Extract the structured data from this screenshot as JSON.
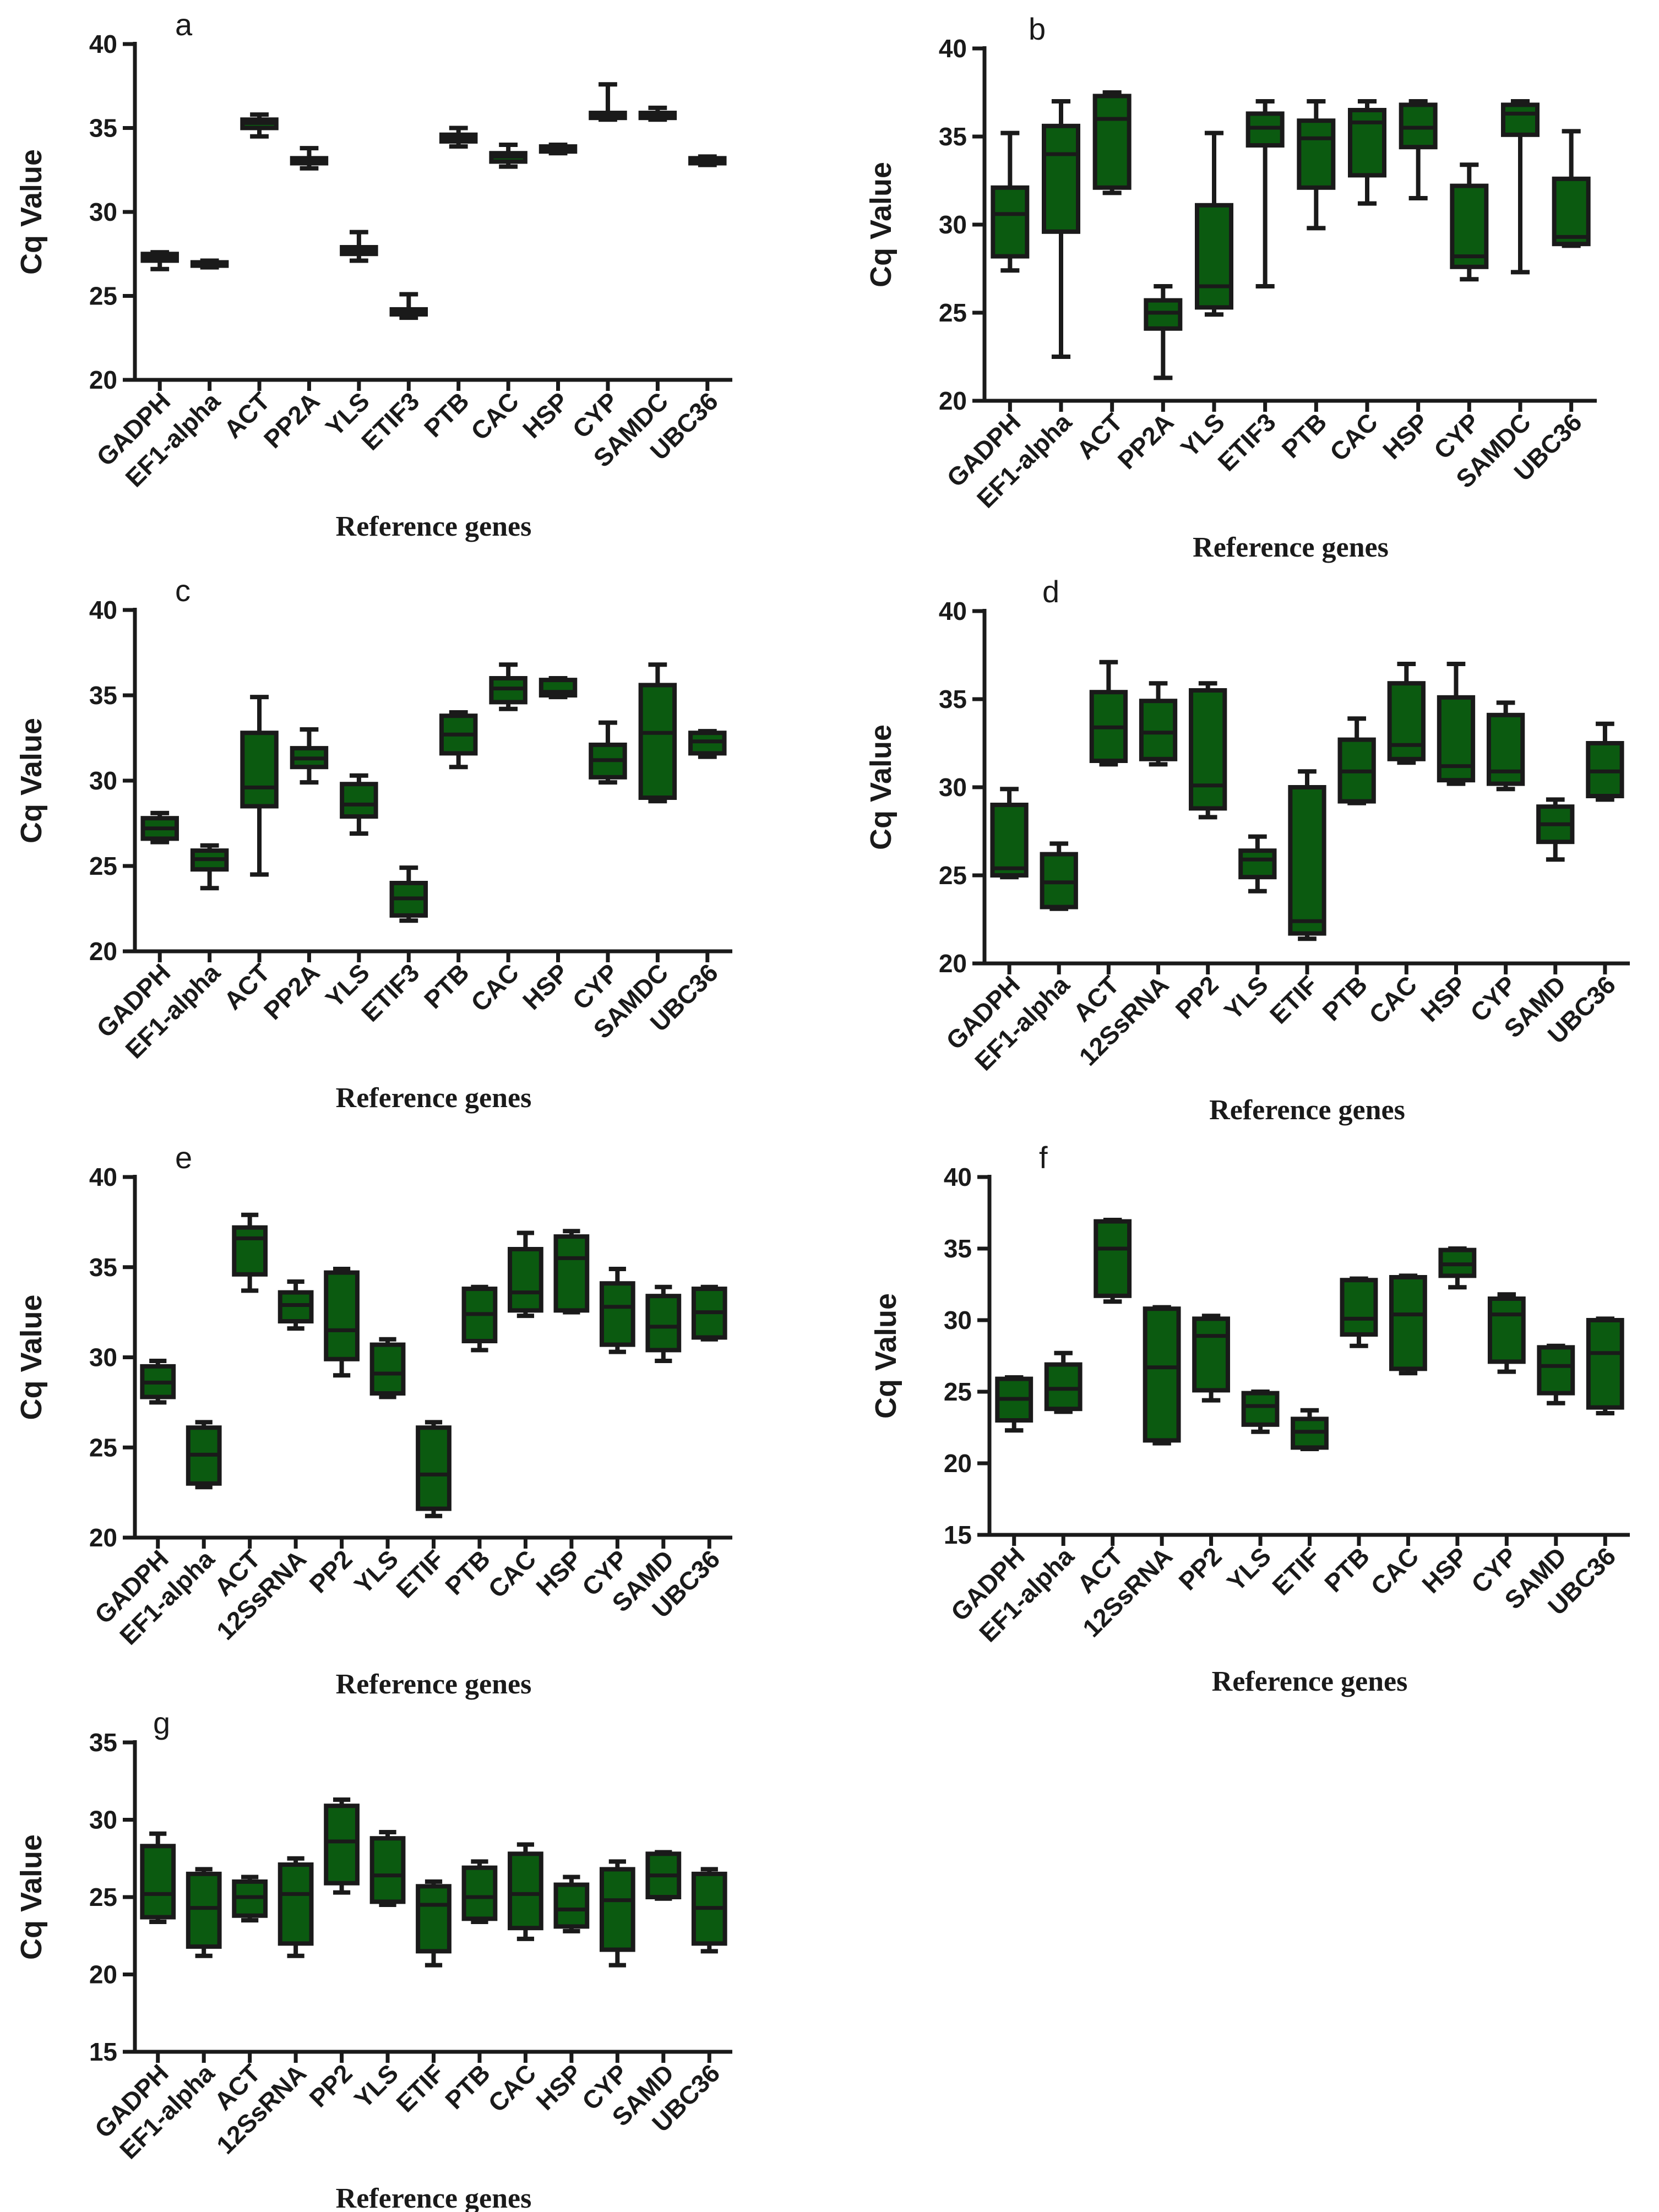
{
  "chart_data": [
    {
      "panel": "a",
      "type": "box",
      "ylabel": "Cq Value",
      "xlabel": "Reference genes",
      "ylim": [
        20,
        40
      ],
      "yticks": [
        20,
        25,
        30,
        35,
        40
      ],
      "categories": [
        "GADPH",
        "EF1-alpha",
        "ACT",
        "PP2A",
        "YLS",
        "ETIF3",
        "PTB",
        "CAC",
        "HSP",
        "CYP",
        "SAMDC",
        "UBC36"
      ],
      "boxes": [
        {
          "min": 26.6,
          "q1": 27.1,
          "median": 27.3,
          "q3": 27.5,
          "max": 27.6
        },
        {
          "min": 26.7,
          "q1": 26.8,
          "median": 26.9,
          "q3": 27.0,
          "max": 27.1
        },
        {
          "min": 34.5,
          "q1": 35.0,
          "median": 35.3,
          "q3": 35.5,
          "max": 35.8
        },
        {
          "min": 32.6,
          "q1": 32.9,
          "median": 33.0,
          "q3": 33.2,
          "max": 33.8
        },
        {
          "min": 27.1,
          "q1": 27.5,
          "median": 27.7,
          "q3": 27.9,
          "max": 28.8
        },
        {
          "min": 23.7,
          "q1": 23.9,
          "median": 24.0,
          "q3": 24.2,
          "max": 25.1
        },
        {
          "min": 33.9,
          "q1": 34.2,
          "median": 34.4,
          "q3": 34.6,
          "max": 35.0
        },
        {
          "min": 32.7,
          "q1": 33.0,
          "median": 33.3,
          "q3": 33.5,
          "max": 34.0
        },
        {
          "min": 33.5,
          "q1": 33.6,
          "median": 33.7,
          "q3": 33.9,
          "max": 34.0
        },
        {
          "min": 35.5,
          "q1": 35.6,
          "median": 35.7,
          "q3": 35.9,
          "max": 37.6
        },
        {
          "min": 35.5,
          "q1": 35.6,
          "median": 35.7,
          "q3": 35.9,
          "max": 36.2
        },
        {
          "min": 32.8,
          "q1": 32.9,
          "median": 33.0,
          "q3": 33.2,
          "max": 33.3
        }
      ]
    },
    {
      "panel": "b",
      "type": "box",
      "ylabel": "Cq Value",
      "xlabel": "Reference genes",
      "ylim": [
        20,
        40
      ],
      "yticks": [
        20,
        25,
        30,
        35,
        40
      ],
      "categories": [
        "GADPH",
        "EF1-alpha",
        "ACT",
        "PP2A",
        "YLS",
        "ETIF3",
        "PTB",
        "CAC",
        "HSP",
        "CYP",
        "SAMDC",
        "UBC36"
      ],
      "boxes": [
        {
          "min": 27.4,
          "q1": 28.2,
          "median": 30.6,
          "q3": 32.1,
          "max": 35.2
        },
        {
          "min": 22.5,
          "q1": 29.6,
          "median": 34.0,
          "q3": 35.6,
          "max": 37.0
        },
        {
          "min": 31.8,
          "q1": 32.1,
          "median": 36.0,
          "q3": 37.3,
          "max": 37.5
        },
        {
          "min": 21.3,
          "q1": 24.1,
          "median": 25.0,
          "q3": 25.7,
          "max": 26.5
        },
        {
          "min": 24.9,
          "q1": 25.3,
          "median": 26.5,
          "q3": 31.1,
          "max": 35.2
        },
        {
          "min": 26.5,
          "q1": 34.5,
          "median": 35.5,
          "q3": 36.3,
          "max": 37.0
        },
        {
          "min": 29.8,
          "q1": 32.1,
          "median": 34.9,
          "q3": 35.9,
          "max": 37.0
        },
        {
          "min": 31.2,
          "q1": 32.8,
          "median": 35.8,
          "q3": 36.5,
          "max": 37.0
        },
        {
          "min": 31.5,
          "q1": 34.4,
          "median": 35.5,
          "q3": 36.8,
          "max": 37.0
        },
        {
          "min": 26.9,
          "q1": 27.6,
          "median": 28.2,
          "q3": 32.2,
          "max": 33.4
        },
        {
          "min": 27.3,
          "q1": 35.1,
          "median": 36.3,
          "q3": 36.8,
          "max": 37.0
        },
        {
          "min": 28.8,
          "q1": 28.9,
          "median": 29.3,
          "q3": 32.6,
          "max": 35.3
        }
      ]
    },
    {
      "panel": "c",
      "type": "box",
      "ylabel": "Cq Value",
      "xlabel": "Reference genes",
      "ylim": [
        20,
        40
      ],
      "yticks": [
        20,
        25,
        30,
        35,
        40
      ],
      "categories": [
        "GADPH",
        "EF1-alpha",
        "ACT",
        "PP2A",
        "YLS",
        "ETIF3",
        "PTB",
        "CAC",
        "HSP",
        "CYP",
        "SAMDC",
        "UBC36"
      ],
      "boxes": [
        {
          "min": 26.4,
          "q1": 26.6,
          "median": 27.2,
          "q3": 27.8,
          "max": 28.1
        },
        {
          "min": 23.7,
          "q1": 24.8,
          "median": 25.4,
          "q3": 25.9,
          "max": 26.2
        },
        {
          "min": 24.5,
          "q1": 28.5,
          "median": 29.6,
          "q3": 32.8,
          "max": 34.9
        },
        {
          "min": 29.9,
          "q1": 30.8,
          "median": 31.3,
          "q3": 31.9,
          "max": 33.0
        },
        {
          "min": 26.9,
          "q1": 27.9,
          "median": 28.6,
          "q3": 29.8,
          "max": 30.3
        },
        {
          "min": 21.8,
          "q1": 22.1,
          "median": 23.1,
          "q3": 24.0,
          "max": 24.9
        },
        {
          "min": 30.8,
          "q1": 31.6,
          "median": 32.7,
          "q3": 33.8,
          "max": 34.0
        },
        {
          "min": 34.2,
          "q1": 34.6,
          "median": 35.4,
          "q3": 36.0,
          "max": 36.8
        },
        {
          "min": 34.9,
          "q1": 35.0,
          "median": 35.2,
          "q3": 35.9,
          "max": 36.0
        },
        {
          "min": 29.9,
          "q1": 30.2,
          "median": 31.2,
          "q3": 32.1,
          "max": 33.4
        },
        {
          "min": 28.8,
          "q1": 29.0,
          "median": 32.8,
          "q3": 35.6,
          "max": 36.8
        },
        {
          "min": 31.4,
          "q1": 31.6,
          "median": 32.3,
          "q3": 32.8,
          "max": 32.9
        }
      ]
    },
    {
      "panel": "d",
      "type": "box",
      "ylabel": "Cq Value",
      "xlabel": "Reference genes",
      "ylim": [
        20,
        40
      ],
      "yticks": [
        20,
        25,
        30,
        35,
        40
      ],
      "categories": [
        "GADPH",
        "EF1-alpha",
        "ACT",
        "12SsRNA",
        "PP2",
        "YLS",
        "ETIF",
        "PTB",
        "CAC",
        "HSP",
        "CYP",
        "SAMD",
        "UBC36"
      ],
      "boxes": [
        {
          "min": 24.9,
          "q1": 25.0,
          "median": 25.4,
          "q3": 29.0,
          "max": 29.9
        },
        {
          "min": 23.1,
          "q1": 23.2,
          "median": 24.6,
          "q3": 26.2,
          "max": 26.8
        },
        {
          "min": 31.3,
          "q1": 31.5,
          "median": 33.4,
          "q3": 35.4,
          "max": 37.1
        },
        {
          "min": 31.3,
          "q1": 31.6,
          "median": 33.1,
          "q3": 34.9,
          "max": 35.9
        },
        {
          "min": 28.3,
          "q1": 28.8,
          "median": 30.1,
          "q3": 35.5,
          "max": 35.9
        },
        {
          "min": 24.1,
          "q1": 24.9,
          "median": 25.9,
          "q3": 26.4,
          "max": 27.2
        },
        {
          "min": 21.4,
          "q1": 21.7,
          "median": 22.4,
          "q3": 30.0,
          "max": 30.9
        },
        {
          "min": 29.1,
          "q1": 29.2,
          "median": 30.9,
          "q3": 32.7,
          "max": 33.9
        },
        {
          "min": 31.4,
          "q1": 31.6,
          "median": 32.4,
          "q3": 35.9,
          "max": 37.0
        },
        {
          "min": 30.2,
          "q1": 30.4,
          "median": 31.2,
          "q3": 35.1,
          "max": 37.0
        },
        {
          "min": 29.9,
          "q1": 30.2,
          "median": 30.9,
          "q3": 34.1,
          "max": 34.8
        },
        {
          "min": 25.9,
          "q1": 26.9,
          "median": 27.9,
          "q3": 28.9,
          "max": 29.3
        },
        {
          "min": 29.3,
          "q1": 29.5,
          "median": 30.9,
          "q3": 32.5,
          "max": 33.6
        }
      ]
    },
    {
      "panel": "e",
      "type": "box",
      "ylabel": "Cq Value",
      "xlabel": "Reference genes",
      "ylim": [
        20,
        40
      ],
      "yticks": [
        20,
        25,
        30,
        35,
        40
      ],
      "categories": [
        "GADPH",
        "EF1-alpha",
        "ACT",
        "12SsRNA",
        "PP2",
        "YLS",
        "ETIF",
        "PTB",
        "CAC",
        "HSP",
        "CYP",
        "SAMD",
        "UBC36"
      ],
      "boxes": [
        {
          "min": 27.5,
          "q1": 27.8,
          "median": 28.6,
          "q3": 29.5,
          "max": 29.8
        },
        {
          "min": 22.8,
          "q1": 23.0,
          "median": 24.6,
          "q3": 26.1,
          "max": 26.4
        },
        {
          "min": 33.7,
          "q1": 34.6,
          "median": 36.6,
          "q3": 37.2,
          "max": 37.9
        },
        {
          "min": 31.6,
          "q1": 32.0,
          "median": 32.9,
          "q3": 33.6,
          "max": 34.2
        },
        {
          "min": 29.0,
          "q1": 29.9,
          "median": 31.5,
          "q3": 34.7,
          "max": 34.9
        },
        {
          "min": 27.8,
          "q1": 28.0,
          "median": 29.1,
          "q3": 30.7,
          "max": 31.0
        },
        {
          "min": 21.2,
          "q1": 21.6,
          "median": 23.5,
          "q3": 26.1,
          "max": 26.4
        },
        {
          "min": 30.4,
          "q1": 30.9,
          "median": 32.4,
          "q3": 33.8,
          "max": 33.9
        },
        {
          "min": 32.3,
          "q1": 32.6,
          "median": 33.6,
          "q3": 36.0,
          "max": 36.9
        },
        {
          "min": 32.5,
          "q1": 32.6,
          "median": 35.5,
          "q3": 36.7,
          "max": 37.0
        },
        {
          "min": 30.3,
          "q1": 30.7,
          "median": 32.8,
          "q3": 34.1,
          "max": 34.9
        },
        {
          "min": 29.8,
          "q1": 30.4,
          "median": 31.7,
          "q3": 33.4,
          "max": 33.9
        },
        {
          "min": 31.0,
          "q1": 31.1,
          "median": 32.5,
          "q3": 33.8,
          "max": 33.9
        }
      ]
    },
    {
      "panel": "f",
      "type": "box",
      "ylabel": "Cq Value",
      "xlabel": "Reference genes",
      "ylim": [
        15,
        40
      ],
      "yticks": [
        15,
        20,
        25,
        30,
        35,
        40
      ],
      "categories": [
        "GADPH",
        "EF1-alpha",
        "ACT",
        "12SsRNA",
        "PP2",
        "YLS",
        "ETIF",
        "PTB",
        "CAC",
        "HSP",
        "CYP",
        "SAMD",
        "UBC36"
      ],
      "boxes": [
        {
          "min": 22.3,
          "q1": 23.0,
          "median": 24.5,
          "q3": 25.9,
          "max": 26.0
        },
        {
          "min": 23.6,
          "q1": 23.8,
          "median": 25.2,
          "q3": 26.9,
          "max": 27.7
        },
        {
          "min": 31.3,
          "q1": 31.7,
          "median": 35.0,
          "q3": 36.9,
          "max": 37.0
        },
        {
          "min": 21.4,
          "q1": 21.6,
          "median": 26.7,
          "q3": 30.8,
          "max": 30.9
        },
        {
          "min": 24.4,
          "q1": 25.1,
          "median": 28.9,
          "q3": 30.1,
          "max": 30.3
        },
        {
          "min": 22.2,
          "q1": 22.7,
          "median": 24.0,
          "q3": 24.9,
          "max": 25.0
        },
        {
          "min": 21.0,
          "q1": 21.1,
          "median": 22.2,
          "q3": 23.1,
          "max": 23.7
        },
        {
          "min": 28.2,
          "q1": 29.0,
          "median": 30.1,
          "q3": 32.8,
          "max": 32.9
        },
        {
          "min": 26.3,
          "q1": 26.6,
          "median": 30.4,
          "q3": 33.0,
          "max": 33.1
        },
        {
          "min": 32.3,
          "q1": 33.1,
          "median": 33.9,
          "q3": 34.9,
          "max": 35.0
        },
        {
          "min": 26.4,
          "q1": 27.1,
          "median": 30.4,
          "q3": 31.5,
          "max": 31.8
        },
        {
          "min": 24.2,
          "q1": 24.9,
          "median": 26.8,
          "q3": 28.1,
          "max": 28.2
        },
        {
          "min": 23.5,
          "q1": 23.9,
          "median": 27.7,
          "q3": 30.0,
          "max": 30.1
        }
      ]
    },
    {
      "panel": "g",
      "type": "box",
      "ylabel": "Cq Value",
      "xlabel": "Reference genes",
      "ylim": [
        15,
        35
      ],
      "yticks": [
        15,
        20,
        25,
        30,
        35
      ],
      "categories": [
        "GADPH",
        "EF1-alpha",
        "ACT",
        "12SsRNA",
        "PP2",
        "YLS",
        "ETIF",
        "PTB",
        "CAC",
        "HSP",
        "CYP",
        "SAMD",
        "UBC36"
      ],
      "boxes": [
        {
          "min": 23.4,
          "q1": 23.7,
          "median": 25.2,
          "q3": 28.3,
          "max": 29.1
        },
        {
          "min": 21.2,
          "q1": 21.8,
          "median": 24.3,
          "q3": 26.5,
          "max": 26.8
        },
        {
          "min": 23.5,
          "q1": 23.8,
          "median": 25.0,
          "q3": 26.0,
          "max": 26.3
        },
        {
          "min": 21.2,
          "q1": 22.0,
          "median": 25.2,
          "q3": 27.1,
          "max": 27.5
        },
        {
          "min": 25.3,
          "q1": 25.9,
          "median": 28.6,
          "q3": 30.9,
          "max": 31.3
        },
        {
          "min": 24.5,
          "q1": 24.7,
          "median": 26.4,
          "q3": 28.8,
          "max": 29.2
        },
        {
          "min": 20.6,
          "q1": 21.5,
          "median": 24.5,
          "q3": 25.7,
          "max": 26.0
        },
        {
          "min": 23.4,
          "q1": 23.6,
          "median": 25.0,
          "q3": 26.9,
          "max": 27.3
        },
        {
          "min": 22.3,
          "q1": 23.0,
          "median": 25.2,
          "q3": 27.8,
          "max": 28.4
        },
        {
          "min": 22.8,
          "q1": 23.1,
          "median": 24.2,
          "q3": 25.8,
          "max": 26.3
        },
        {
          "min": 20.6,
          "q1": 21.6,
          "median": 24.8,
          "q3": 26.8,
          "max": 27.3
        },
        {
          "min": 24.9,
          "q1": 25.0,
          "median": 26.4,
          "q3": 27.8,
          "max": 27.9
        },
        {
          "min": 21.5,
          "q1": 22.0,
          "median": 24.3,
          "q3": 26.5,
          "max": 26.8
        }
      ]
    }
  ]
}
